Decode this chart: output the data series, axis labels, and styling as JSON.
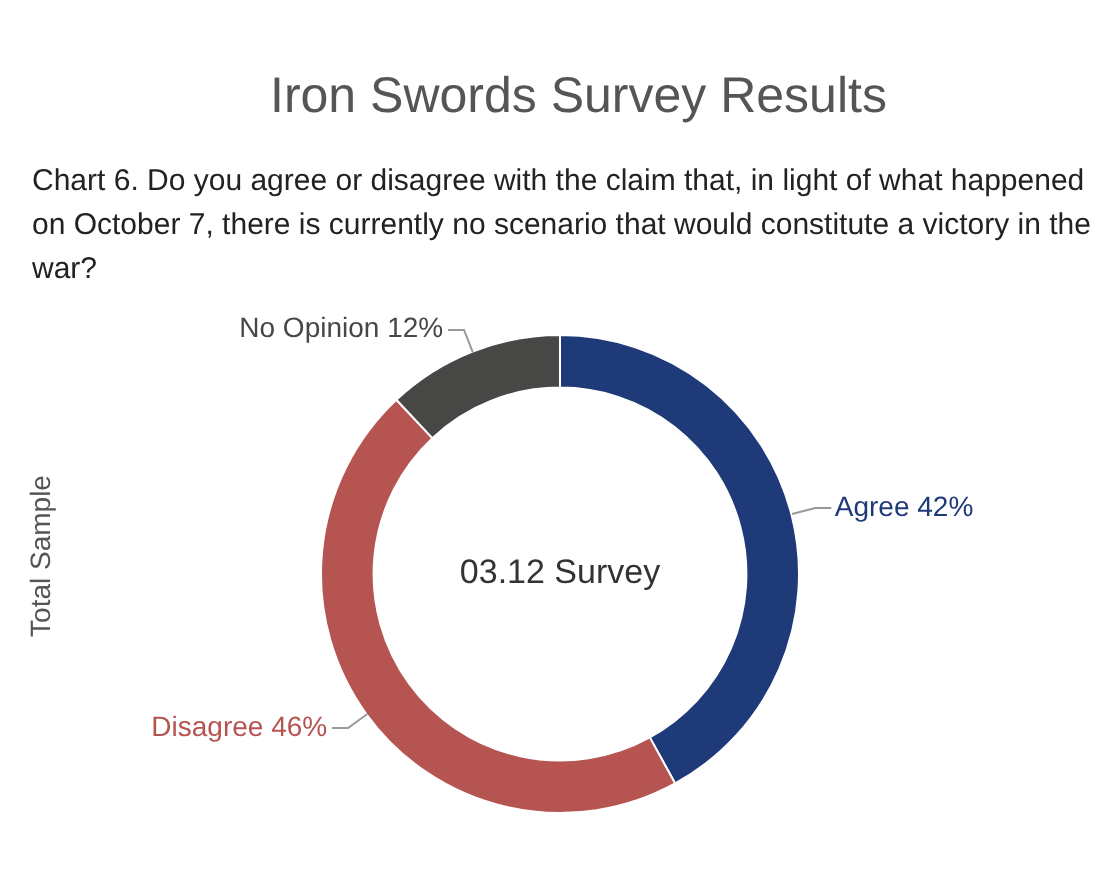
{
  "chart_data": {
    "type": "donut",
    "title": "Iron Swords Survey Results",
    "subtitle": "Chart 6. Do you agree or disagree with the claim that, in light of what happened on October 7, there is currently no scenario that would constitute a victory in the war?",
    "ylabel": "Total Sample",
    "annotations": [
      "03.12 Survey"
    ],
    "categories": [
      "Agree",
      "Disagree",
      "No Opinion"
    ],
    "values": [
      42,
      46,
      12
    ],
    "colors": [
      "#1e3a78",
      "#b65451",
      "#474745"
    ],
    "value_labels": [
      "42%",
      "46%",
      "12%"
    ],
    "legend": false
  }
}
